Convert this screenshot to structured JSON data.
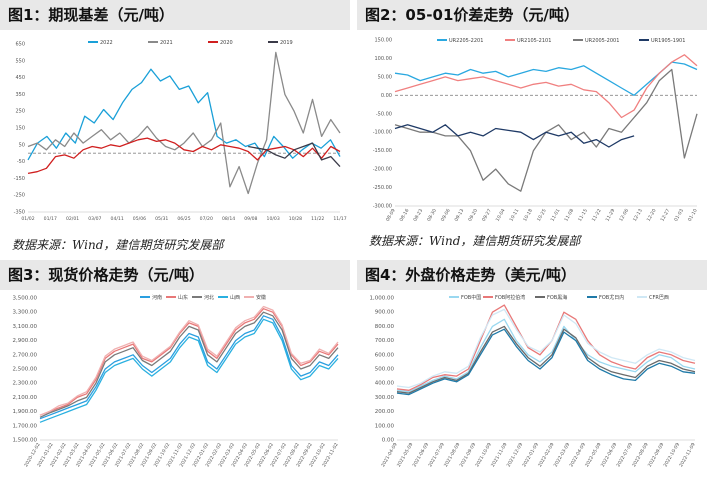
{
  "panels": [
    {
      "title": "图1：期现基差（元/吨）",
      "source": "数据来源：Wind，建信期货研究发展部",
      "chart_data": {
        "type": "line",
        "ylim": [
          -350,
          650
        ],
        "y_ticks": [
          "650",
          "550",
          "450",
          "350",
          "250",
          "150",
          "50",
          "-50",
          "-150",
          "-250",
          "-350"
        ],
        "x_ticks": [
          "01/02",
          "01/17",
          "02/01",
          "03/07",
          "04/11",
          "05/06",
          "05/31",
          "06/25",
          "07/20",
          "08/14",
          "09/08",
          "10/03",
          "10/28",
          "11/22",
          "11/17"
        ],
        "series": [
          {
            "name": "2022",
            "color": "#1aa0d8",
            "values": [
              -40,
              60,
              100,
              30,
              120,
              60,
              220,
              180,
              260,
              200,
              300,
              380,
              420,
              500,
              430,
              460,
              380,
              400,
              300,
              360,
              100,
              60,
              80,
              40,
              60,
              -20,
              100,
              40,
              -30,
              20,
              60,
              30,
              80,
              -20
            ]
          },
          {
            "name": "2021",
            "color": "#8a8a8a",
            "values": [
              40,
              60,
              20,
              80,
              40,
              120,
              60,
              100,
              140,
              80,
              120,
              60,
              100,
              160,
              90,
              40,
              20,
              60,
              120,
              40,
              80,
              180,
              -200,
              -80,
              -240,
              -60,
              80,
              600,
              350,
              250,
              120,
              320,
              100,
              200,
              120
            ]
          },
          {
            "name": "2020",
            "color": "#d01f1f",
            "values": [
              -120,
              -110,
              -90,
              -20,
              -10,
              -30,
              20,
              40,
              30,
              50,
              40,
              60,
              80,
              90,
              70,
              80,
              60,
              20,
              10,
              40,
              20,
              50,
              40,
              30,
              10,
              -40,
              20,
              30,
              40,
              20,
              -20,
              30,
              -30,
              40,
              10
            ]
          },
          {
            "name": "2019",
            "color": "#3a3a48",
            "values": [
              null,
              null,
              null,
              null,
              null,
              null,
              null,
              null,
              null,
              null,
              null,
              null,
              null,
              null,
              null,
              null,
              null,
              null,
              null,
              null,
              null,
              null,
              null,
              null,
              40,
              30,
              20,
              -10,
              -30,
              20,
              40,
              60,
              -40,
              -20,
              -80
            ]
          }
        ]
      }
    },
    {
      "title": "图2：05-01价差走势（元/吨）",
      "source": "数据来源：Wind，建信期货研究发展部",
      "chart_data": {
        "type": "line",
        "ylim": [
          -300,
          150
        ],
        "y_ticks": [
          "150.00",
          "100.00",
          "50.00",
          "0.00",
          "-50.00",
          "-100.00",
          "-150.00",
          "-200.00",
          "-250.00",
          "-300.00"
        ],
        "x_ticks": [
          "08-09",
          "08-16",
          "08-23",
          "08-30",
          "09-06",
          "09-13",
          "09-20",
          "09-27",
          "10-04",
          "10-11",
          "10-18",
          "10-25",
          "11-01",
          "11-08",
          "11-15",
          "11-22",
          "11-29",
          "12-06",
          "12-13",
          "12-20",
          "12-27",
          "01-03",
          "01-10"
        ],
        "series": [
          {
            "name": "UR2205-2201",
            "color": "#2aa8e0",
            "values": [
              60,
              55,
              40,
              50,
              60,
              55,
              70,
              60,
              65,
              50,
              60,
              70,
              65,
              75,
              70,
              80,
              60,
              40,
              20,
              0,
              30,
              60,
              90,
              85,
              70
            ]
          },
          {
            "name": "UR2105-2101",
            "color": "#f08080",
            "values": [
              10,
              20,
              30,
              40,
              50,
              40,
              45,
              50,
              40,
              30,
              20,
              30,
              35,
              25,
              30,
              15,
              10,
              -20,
              -60,
              -40,
              20,
              60,
              90,
              110,
              80
            ]
          },
          {
            "name": "UR2005-2001",
            "color": "#7a7a7a",
            "values": [
              -80,
              -90,
              -100,
              -100,
              -110,
              -110,
              -150,
              -230,
              -200,
              -240,
              -260,
              -150,
              -100,
              -80,
              -120,
              -100,
              -140,
              -90,
              -100,
              -60,
              -20,
              40,
              70,
              -170,
              -50
            ]
          },
          {
            "name": "UR1905-1901",
            "color": "#1f3a66",
            "values": [
              -90,
              -80,
              -90,
              -100,
              -80,
              -110,
              -100,
              -110,
              -90,
              -95,
              -100,
              -120,
              -100,
              -110,
              -100,
              -130,
              -120,
              -140,
              -120,
              -110,
              null,
              null,
              null,
              null,
              null
            ]
          }
        ]
      }
    },
    {
      "title": "图3：现货价格走势（元/吨）",
      "source": "",
      "chart_data": {
        "type": "line",
        "ylim": [
          1500,
          3500
        ],
        "y_ticks": [
          "3,500.00",
          "3,300.00",
          "3,100.00",
          "2,900.00",
          "2,700.00",
          "2,500.00",
          "2,300.00",
          "2,100.00",
          "1,900.00",
          "1,700.00",
          "1,500.00"
        ],
        "x_ticks": [
          "2020-12-02",
          "2021-01-02",
          "2021-02-02",
          "2021-03-02",
          "2021-04-02",
          "2021-05-02",
          "2021-06-02",
          "2021-07-02",
          "2021-08-02",
          "2021-09-02",
          "2021-10-02",
          "2021-11-02",
          "2021-12-02",
          "2022-01-02",
          "2022-02-02",
          "2022-03-02",
          "2022-04-02",
          "2022-05-02",
          "2022-06-02",
          "2022-07-02",
          "2022-08-02",
          "2022-09-02",
          "2022-10-02",
          "2022-11-02"
        ],
        "series": [
          {
            "name": "河南",
            "color": "#2a9fe0",
            "values": [
              1800,
              1850,
              1900,
              1950,
              2000,
              2050,
              2250,
              2500,
              2600,
              2650,
              2700,
              2550,
              2450,
              2550,
              2650,
              2850,
              3000,
              2950,
              2600,
              2500,
              2700,
              2900,
              3000,
              3050,
              3250,
              3200,
              2950,
              2550,
              2400,
              2450,
              2600,
              2550,
              2700
            ]
          },
          {
            "name": "山东",
            "color": "#e87878",
            "values": [
              1850,
              1900,
              1950,
              2000,
              2100,
              2150,
              2350,
              2650,
              2750,
              2800,
              2850,
              2650,
              2600,
              2700,
              2800,
              3000,
              3150,
              3100,
              2750,
              2650,
              2850,
              3050,
              3150,
              3200,
              3350,
              3300,
              3100,
              2700,
              2550,
              2600,
              2750,
              2700,
              2850
            ]
          },
          {
            "name": "河北",
            "color": "#7a7a7a",
            "values": [
              1820,
              1880,
              1930,
              1980,
              2050,
              2100,
              2300,
              2600,
              2700,
              2750,
              2800,
              2620,
              2550,
              2650,
              2750,
              2950,
              3100,
              3050,
              2700,
              2600,
              2800,
              3000,
              3100,
              3150,
              3300,
              3250,
              3050,
              2650,
              2500,
              2550,
              2700,
              2650,
              2800
            ]
          },
          {
            "name": "山西",
            "color": "#2ab0e0",
            "values": [
              1750,
              1800,
              1850,
              1900,
              1950,
              2000,
              2200,
              2450,
              2550,
              2600,
              2650,
              2500,
              2400,
              2500,
              2600,
              2800,
              2950,
              2900,
              2550,
              2450,
              2650,
              2850,
              2950,
              3000,
              3200,
              3150,
              2900,
              2500,
              2350,
              2400,
              2550,
              2500,
              2650
            ]
          },
          {
            "name": "安徽",
            "color": "#f0b0b0",
            "values": [
              1850,
              1900,
              1980,
              2020,
              2120,
              2180,
              2380,
              2680,
              2780,
              2830,
              2880,
              2680,
              2620,
              2720,
              2820,
              3020,
              3180,
              3120,
              2780,
              2680,
              2880,
              3080,
              3180,
              3230,
              3380,
              3330,
              3120,
              2720,
              2580,
              2620,
              2780,
              2720,
              2880
            ]
          }
        ]
      }
    },
    {
      "title": "图4：外盘价格走势（美元/吨）",
      "source": "",
      "chart_data": {
        "type": "line",
        "ylim": [
          0,
          1000
        ],
        "y_ticks": [
          "1,000.00",
          "900.00",
          "800.00",
          "700.00",
          "600.00",
          "500.00",
          "400.00",
          "300.00",
          "200.00",
          "100.00",
          "0.00"
        ],
        "x_ticks": [
          "2021-04-09",
          "2021-05-09",
          "2021-06-09",
          "2021-07-09",
          "2021-08-09",
          "2021-09-09",
          "2021-10-09",
          "2021-11-09",
          "2021-12-09",
          "2022-01-09",
          "2022-02-09",
          "2022-03-09",
          "2022-04-09",
          "2022-05-09",
          "2022-06-09",
          "2022-07-09",
          "2022-08-09",
          "2022-09-09",
          "2022-10-09",
          "2022-11-09"
        ],
        "series": [
          {
            "name": "FOB中国",
            "color": "#9ad8f0",
            "values": [
              350,
              340,
              380,
              420,
              450,
              430,
              480,
              650,
              800,
              850,
              700,
              600,
              550,
              620,
              800,
              700,
              600,
              550,
              520,
              500,
              480,
              550,
              600,
              580,
              520,
              500
            ]
          },
          {
            "name": "FOB阿拉伯湾",
            "color": "#e87878",
            "values": [
              360,
              350,
              390,
              440,
              460,
              450,
              500,
              700,
              900,
              950,
              800,
              650,
              600,
              700,
              900,
              850,
              700,
              600,
              550,
              520,
              500,
              580,
              620,
              600,
              560,
              540
            ]
          },
          {
            "name": "FOB黑海",
            "color": "#6a6a6a",
            "values": [
              340,
              330,
              370,
              410,
              440,
              420,
              470,
              620,
              760,
              800,
              680,
              580,
              520,
              600,
              780,
              720,
              580,
              520,
              480,
              460,
              440,
              520,
              560,
              540,
              500,
              480
            ]
          },
          {
            "name": "FOB尤日内",
            "color": "#1f7aa8",
            "values": [
              330,
              320,
              360,
              400,
              430,
              410,
              460,
              600,
              740,
              780,
              660,
              560,
              500,
              580,
              760,
              700,
              560,
              500,
              460,
              430,
              420,
              500,
              540,
              520,
              480,
              470
            ]
          },
          {
            "name": "CFR巴西",
            "color": "#cfe8f5",
            "values": [
              380,
              370,
              400,
              450,
              480,
              470,
              520,
              720,
              880,
              920,
              780,
              660,
              620,
              700,
              880,
              820,
              680,
              620,
              580,
              560,
              540,
              600,
              640,
              620,
              580,
              560
            ]
          }
        ]
      }
    }
  ]
}
